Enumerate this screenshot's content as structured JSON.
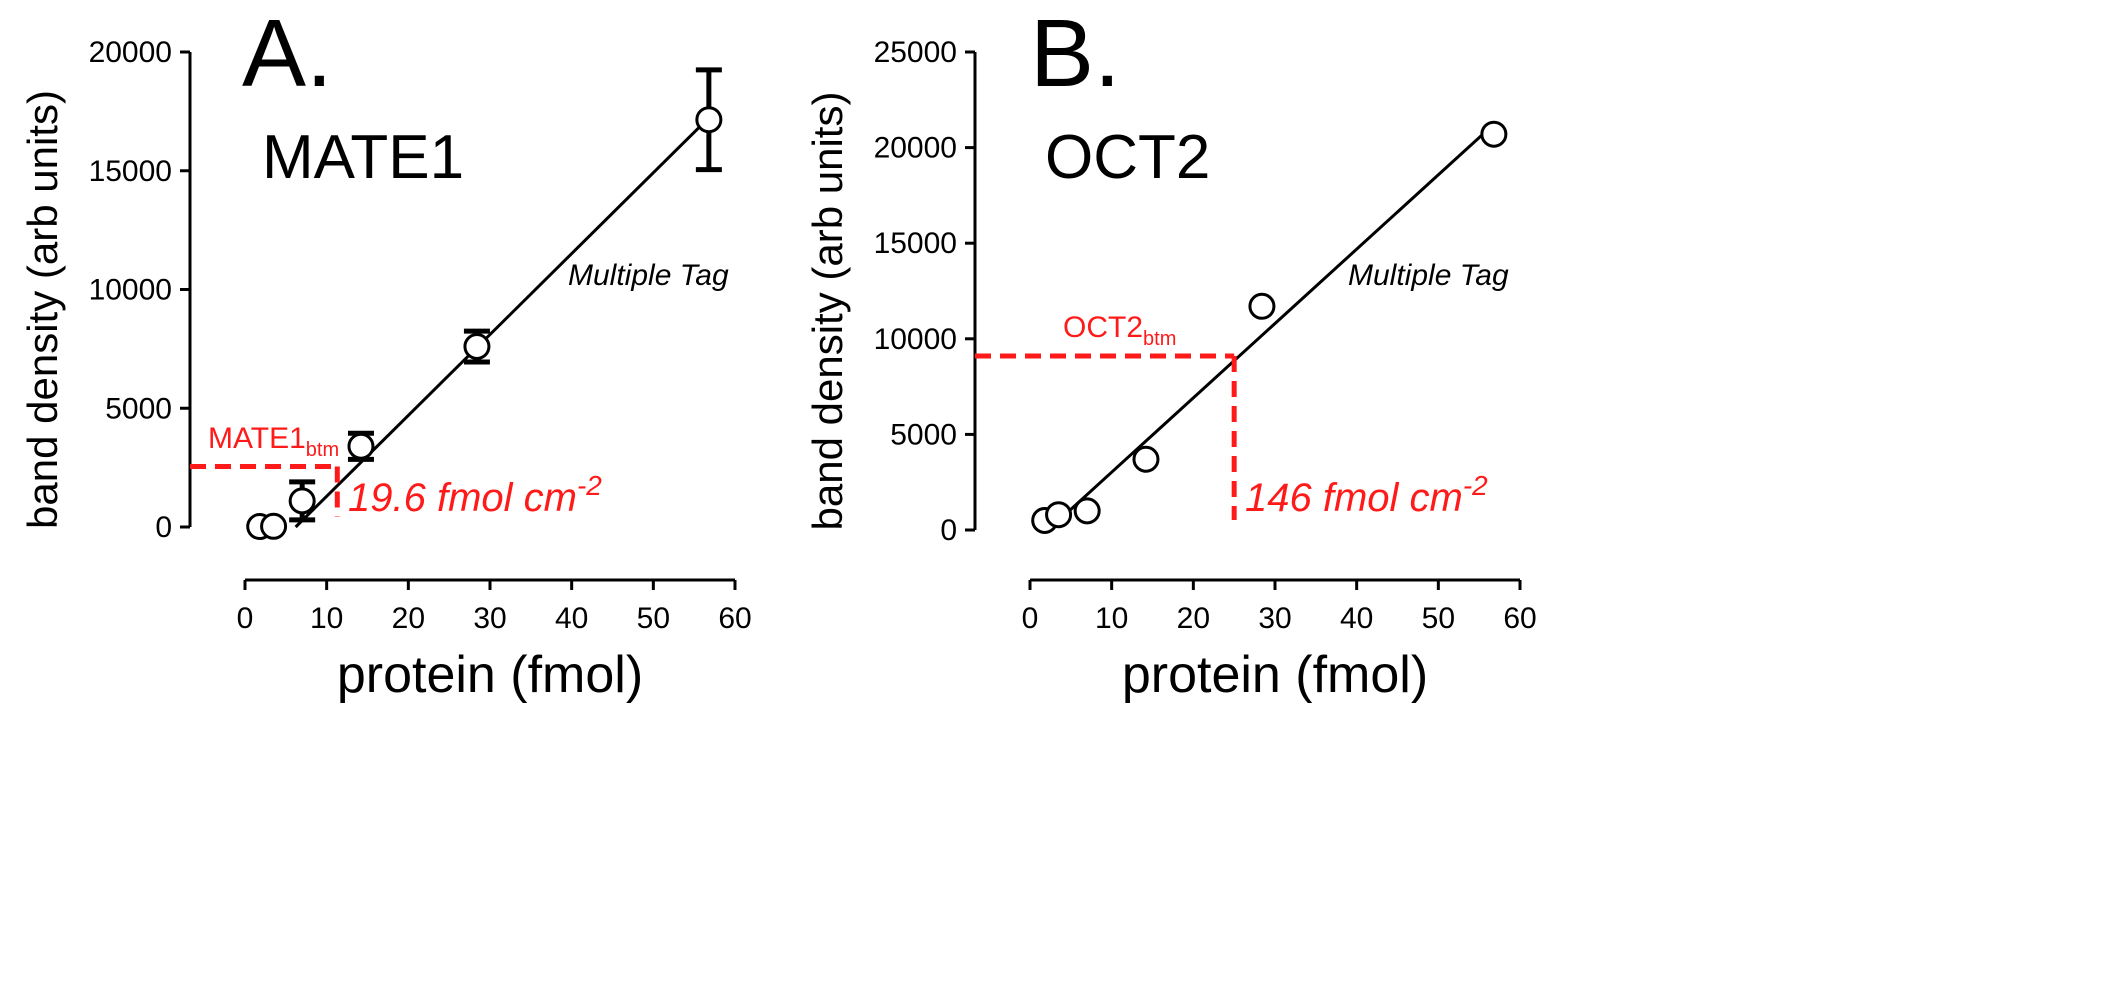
{
  "chart_data": [
    {
      "type": "scatter",
      "panel_label": "A.",
      "title": "MATE1",
      "xlabel": "protein (fmol)",
      "ylabel": "band density (arb units)",
      "xlim": [
        0,
        60
      ],
      "ylim": [
        0,
        20000
      ],
      "xticks": [
        0,
        10,
        20,
        30,
        40,
        50,
        60
      ],
      "yticks": [
        0,
        5000,
        10000,
        15000,
        20000
      ],
      "grid": false,
      "fit_label": "Multiple Tag",
      "fit_line": {
        "x": [
          6.2,
          57
        ],
        "y": [
          0,
          17300
        ]
      },
      "series": [
        {
          "name": "MATE1",
          "x": [
            1.8,
            3.5,
            7,
            14.2,
            28.4,
            56.8
          ],
          "y": [
            20,
            30,
            1100,
            3400,
            7600,
            17150
          ],
          "err": [
            0,
            0,
            800,
            550,
            650,
            2100
          ]
        }
      ],
      "annotation": {
        "label": "MATE1",
        "subscript": "btm",
        "x": 11.3,
        "y": 2550,
        "value_text": "19.6 fmol cm",
        "value_exp": "-2",
        "color": "#ff1a1a"
      }
    },
    {
      "type": "scatter",
      "panel_label": "B.",
      "title": "OCT2",
      "xlabel": "protein (fmol)",
      "ylabel": "band density (arb units)",
      "xlim": [
        0,
        60
      ],
      "ylim": [
        0,
        25000
      ],
      "xticks": [
        0,
        10,
        20,
        30,
        40,
        50,
        60
      ],
      "yticks": [
        0,
        5000,
        10000,
        15000,
        20000,
        25000
      ],
      "grid": false,
      "fit_label": "Multiple Tag",
      "fit_line": {
        "x": [
          3,
          57
        ],
        "y": [
          300,
          21300
        ]
      },
      "series": [
        {
          "name": "OCT2",
          "x": [
            1.8,
            3.5,
            7,
            14.2,
            28.4,
            56.8
          ],
          "y": [
            500,
            800,
            1000,
            3700,
            11700,
            20700
          ],
          "err": [
            0,
            0,
            0,
            0,
            0,
            0
          ]
        }
      ],
      "annotation": {
        "label": "OCT2",
        "subscript": "btm",
        "x": 25,
        "y": 9100,
        "value_text": "146 fmol cm",
        "value_exp": "-2",
        "color": "#ff1a1a"
      }
    }
  ]
}
